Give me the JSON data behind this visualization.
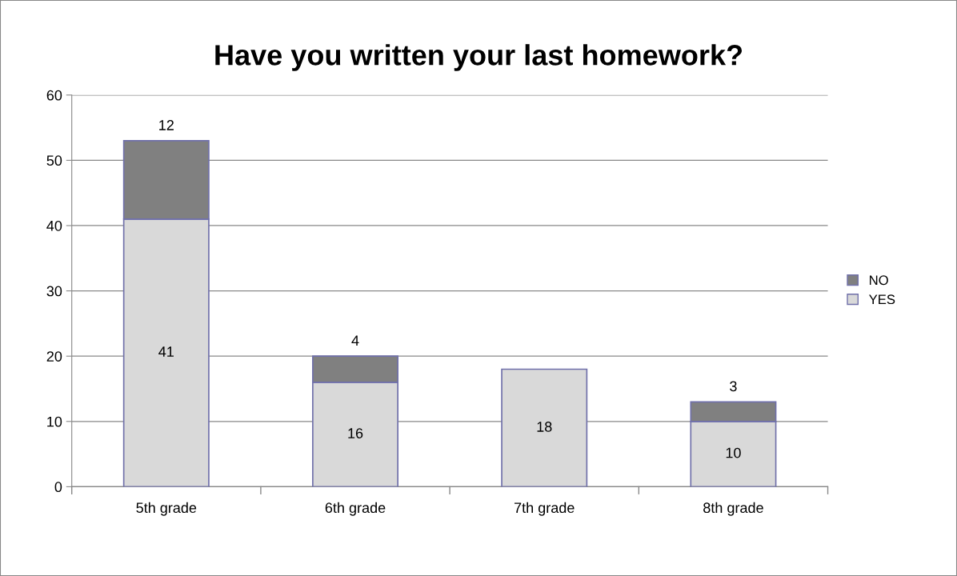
{
  "chart_data": {
    "type": "bar",
    "title": "Have you written your last homework?",
    "categories": [
      "5th grade",
      "6th grade",
      "7th grade",
      "8th grade"
    ],
    "stacked": true,
    "series": [
      {
        "name": "YES",
        "color": "#d9d9d9",
        "values": [
          41,
          16,
          18,
          10
        ],
        "value_labels": [
          "41",
          "16",
          "18",
          "10"
        ]
      },
      {
        "name": "NO",
        "color": "#808080",
        "values": [
          12,
          4,
          null,
          3
        ],
        "value_labels": [
          "12",
          "4",
          null,
          "3"
        ]
      }
    ],
    "ylim": [
      0,
      60
    ],
    "yticks": [
      0,
      10,
      20,
      30,
      40,
      50,
      60
    ],
    "grid": "y",
    "legend": "right"
  }
}
